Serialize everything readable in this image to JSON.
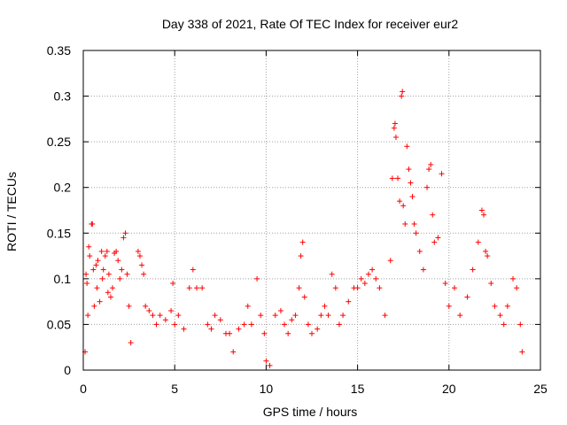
{
  "chart_data": {
    "type": "scatter",
    "title": "Day 338 of 2021, Rate Of TEC Index for receiver eur2",
    "xlabel": "GPS time / hours",
    "ylabel": "ROTI / TECUs",
    "xlim": [
      0,
      25
    ],
    "ylim": [
      0,
      0.35
    ],
    "xticks": [
      0,
      5,
      10,
      15,
      20,
      25
    ],
    "yticks": [
      0,
      0.05,
      0.1,
      0.15,
      0.2,
      0.25,
      0.3,
      0.35
    ],
    "xtick_labels": [
      "0",
      "5",
      "10",
      "15",
      "20",
      "25"
    ],
    "ytick_labels": [
      "0",
      "0.05",
      "0.1",
      "0.15",
      "0.2",
      "0.25",
      "0.3",
      "0.35"
    ],
    "grid": true,
    "marker": "+",
    "color": "#ff0000",
    "series": [
      {
        "name": "ROTI",
        "points": [
          [
            0.1,
            0.02
          ],
          [
            0.15,
            0.105
          ],
          [
            0.2,
            0.095
          ],
          [
            0.25,
            0.06
          ],
          [
            0.3,
            0.135
          ],
          [
            0.35,
            0.125
          ],
          [
            0.45,
            0.16
          ],
          [
            0.5,
            0.16
          ],
          [
            0.55,
            0.11
          ],
          [
            0.6,
            0.07
          ],
          [
            0.7,
            0.115
          ],
          [
            0.75,
            0.09
          ],
          [
            0.8,
            0.12
          ],
          [
            0.9,
            0.075
          ],
          [
            1.0,
            0.13
          ],
          [
            1.05,
            0.1
          ],
          [
            1.1,
            0.11
          ],
          [
            1.2,
            0.125
          ],
          [
            1.3,
            0.13
          ],
          [
            1.35,
            0.085
          ],
          [
            1.4,
            0.105
          ],
          [
            1.5,
            0.08
          ],
          [
            1.6,
            0.09
          ],
          [
            1.7,
            0.128
          ],
          [
            1.8,
            0.13
          ],
          [
            1.9,
            0.12
          ],
          [
            2.0,
            0.1
          ],
          [
            2.1,
            0.11
          ],
          [
            2.2,
            0.145
          ],
          [
            2.3,
            0.15
          ],
          [
            2.4,
            0.105
          ],
          [
            2.5,
            0.07
          ],
          [
            2.6,
            0.03
          ],
          [
            3.0,
            0.13
          ],
          [
            3.1,
            0.125
          ],
          [
            3.2,
            0.115
          ],
          [
            3.3,
            0.105
          ],
          [
            3.4,
            0.07
          ],
          [
            3.6,
            0.065
          ],
          [
            3.8,
            0.06
          ],
          [
            4.0,
            0.05
          ],
          [
            4.2,
            0.06
          ],
          [
            4.5,
            0.055
          ],
          [
            4.8,
            0.065
          ],
          [
            4.9,
            0.095
          ],
          [
            5.0,
            0.05
          ],
          [
            5.2,
            0.06
          ],
          [
            5.5,
            0.045
          ],
          [
            5.8,
            0.09
          ],
          [
            6.0,
            0.11
          ],
          [
            6.2,
            0.09
          ],
          [
            6.5,
            0.09
          ],
          [
            6.8,
            0.05
          ],
          [
            7.0,
            0.045
          ],
          [
            7.2,
            0.06
          ],
          [
            7.5,
            0.055
          ],
          [
            7.8,
            0.04
          ],
          [
            8.0,
            0.04
          ],
          [
            8.2,
            0.02
          ],
          [
            8.5,
            0.045
          ],
          [
            8.8,
            0.05
          ],
          [
            9.0,
            0.07
          ],
          [
            9.2,
            0.05
          ],
          [
            9.5,
            0.1
          ],
          [
            9.7,
            0.06
          ],
          [
            9.9,
            0.04
          ],
          [
            10.0,
            0.01
          ],
          [
            10.2,
            0.005
          ],
          [
            10.5,
            0.06
          ],
          [
            10.8,
            0.065
          ],
          [
            11.0,
            0.05
          ],
          [
            11.2,
            0.04
          ],
          [
            11.4,
            0.055
          ],
          [
            11.6,
            0.06
          ],
          [
            11.8,
            0.09
          ],
          [
            11.9,
            0.125
          ],
          [
            12.0,
            0.14
          ],
          [
            12.1,
            0.08
          ],
          [
            12.3,
            0.05
          ],
          [
            12.5,
            0.04
          ],
          [
            12.8,
            0.045
          ],
          [
            13.0,
            0.06
          ],
          [
            13.2,
            0.07
          ],
          [
            13.4,
            0.06
          ],
          [
            13.6,
            0.105
          ],
          [
            13.8,
            0.09
          ],
          [
            14.0,
            0.05
          ],
          [
            14.2,
            0.06
          ],
          [
            14.5,
            0.075
          ],
          [
            14.8,
            0.09
          ],
          [
            15.0,
            0.09
          ],
          [
            15.2,
            0.1
          ],
          [
            15.4,
            0.095
          ],
          [
            15.6,
            0.105
          ],
          [
            15.8,
            0.11
          ],
          [
            16.0,
            0.1
          ],
          [
            16.2,
            0.09
          ],
          [
            16.5,
            0.06
          ],
          [
            16.8,
            0.12
          ],
          [
            16.9,
            0.21
          ],
          [
            17.0,
            0.265
          ],
          [
            17.05,
            0.27
          ],
          [
            17.1,
            0.255
          ],
          [
            17.2,
            0.21
          ],
          [
            17.3,
            0.185
          ],
          [
            17.4,
            0.3
          ],
          [
            17.45,
            0.305
          ],
          [
            17.5,
            0.18
          ],
          [
            17.6,
            0.16
          ],
          [
            17.7,
            0.245
          ],
          [
            17.8,
            0.22
          ],
          [
            17.9,
            0.205
          ],
          [
            18.0,
            0.19
          ],
          [
            18.1,
            0.16
          ],
          [
            18.2,
            0.15
          ],
          [
            18.4,
            0.13
          ],
          [
            18.6,
            0.11
          ],
          [
            18.8,
            0.2
          ],
          [
            18.9,
            0.22
          ],
          [
            19.0,
            0.225
          ],
          [
            19.1,
            0.17
          ],
          [
            19.2,
            0.14
          ],
          [
            19.4,
            0.145
          ],
          [
            19.6,
            0.215
          ],
          [
            19.8,
            0.095
          ],
          [
            20.0,
            0.07
          ],
          [
            20.3,
            0.09
          ],
          [
            20.6,
            0.06
          ],
          [
            21.0,
            0.08
          ],
          [
            21.3,
            0.11
          ],
          [
            21.6,
            0.14
          ],
          [
            21.8,
            0.175
          ],
          [
            21.9,
            0.17
          ],
          [
            22.0,
            0.13
          ],
          [
            22.1,
            0.125
          ],
          [
            22.3,
            0.095
          ],
          [
            22.5,
            0.07
          ],
          [
            22.8,
            0.06
          ],
          [
            23.0,
            0.05
          ],
          [
            23.2,
            0.07
          ],
          [
            23.5,
            0.1
          ],
          [
            23.7,
            0.09
          ],
          [
            23.9,
            0.05
          ],
          [
            24.0,
            0.02
          ]
        ]
      }
    ]
  }
}
